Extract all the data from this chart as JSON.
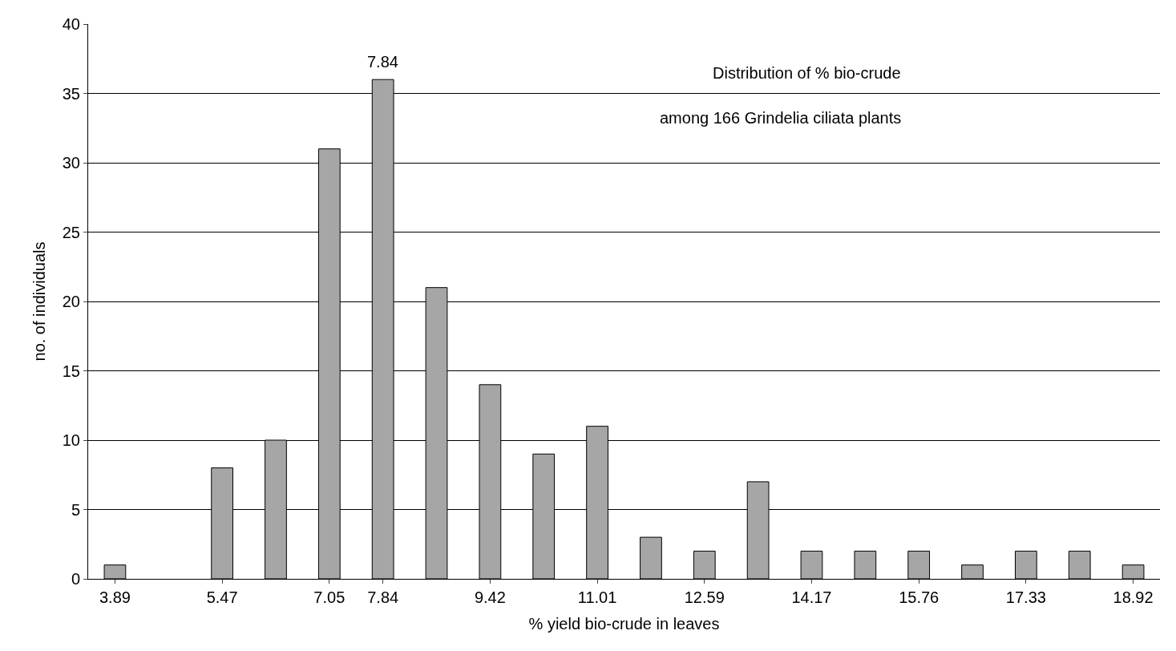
{
  "chart_data": {
    "type": "bar",
    "title": "Distribution of % bio-crude",
    "subtitle": "among 166 Grindelia ciliata plants",
    "xlabel": "% yield bio-crude in leaves",
    "ylabel": "no. of individuals",
    "categories": [
      "3.89",
      null,
      "5.47",
      null,
      "7.05",
      "7.84",
      null,
      "9.42",
      null,
      "11.01",
      null,
      "12.59",
      null,
      "14.17",
      null,
      "15.76",
      null,
      "17.33",
      null,
      "18.92"
    ],
    "values": [
      1,
      0,
      8,
      10,
      31,
      36,
      21,
      14,
      9,
      11,
      3,
      2,
      7,
      2,
      2,
      2,
      1,
      2,
      2,
      1
    ],
    "color": "#a6a6a6",
    "ylim": [
      0,
      40
    ],
    "yticks": [
      0,
      5,
      10,
      15,
      20,
      25,
      30,
      35,
      40
    ],
    "grid": "y",
    "legend": false,
    "annotations": [
      {
        "text": "7.84",
        "x": "7.84",
        "y": 36
      }
    ]
  }
}
